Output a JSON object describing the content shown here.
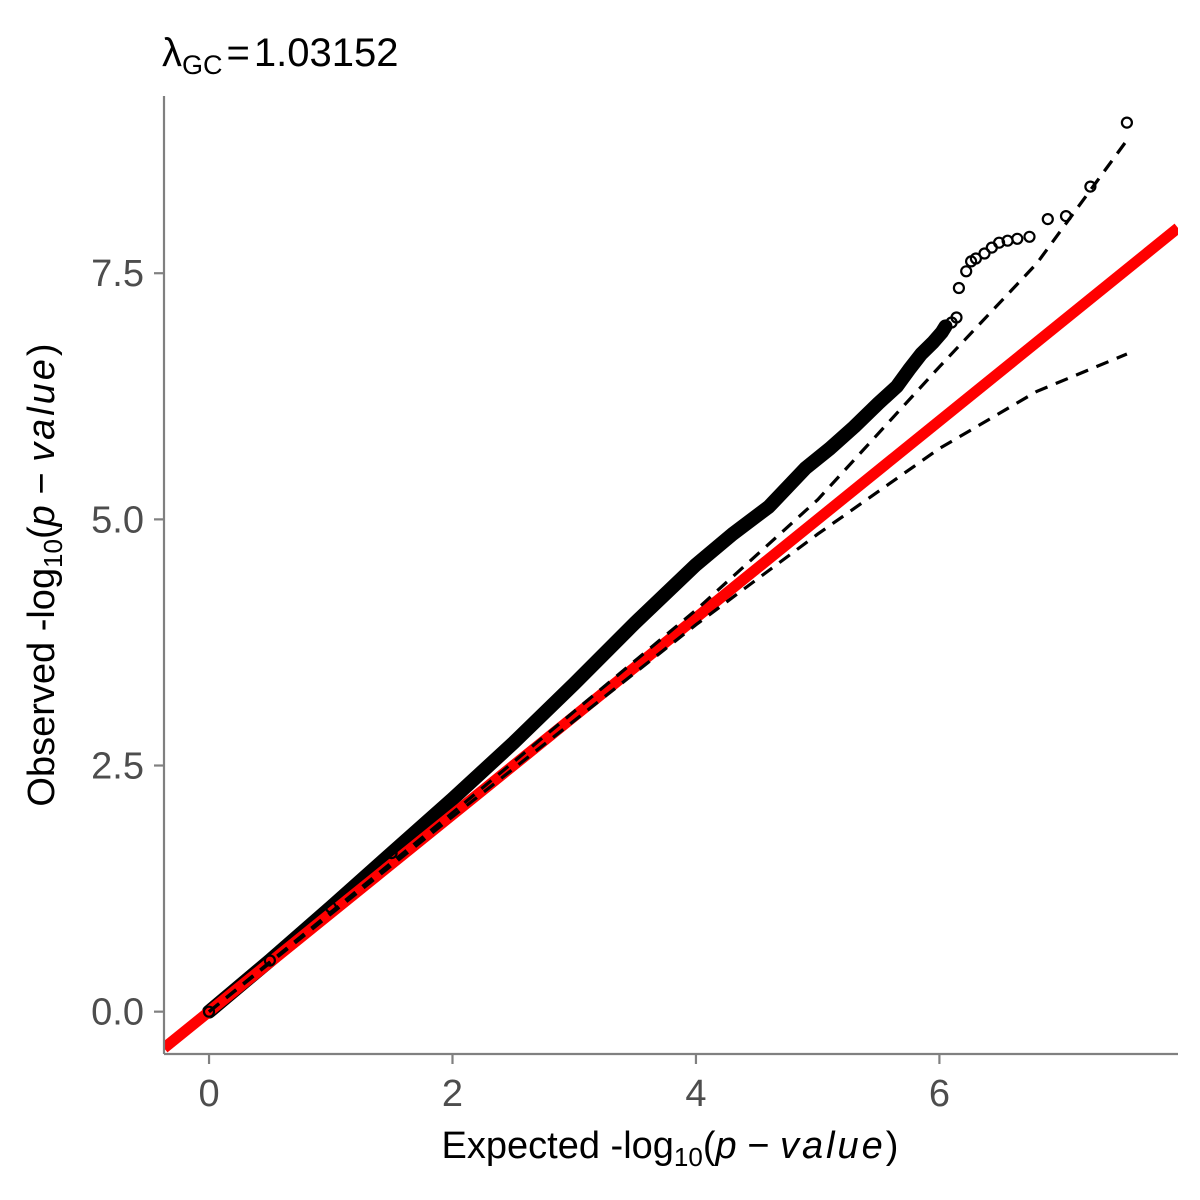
{
  "chart_data": {
    "type": "scatter",
    "title": {
      "symbol": "λ",
      "subscript": "GC",
      "equals": "=",
      "value": "1.03152"
    },
    "xlabel": {
      "prefix": "Expected -log",
      "subscript": "10",
      "open": "(",
      "p": "p",
      "minus": " − ",
      "italic": "value",
      "close": ")"
    },
    "ylabel": {
      "prefix": "Observed -log",
      "subscript": "10",
      "open": "(",
      "p": "p",
      "minus": " − ",
      "italic": "value",
      "close": ")"
    },
    "xlim": [
      -0.37,
      7.96
    ],
    "ylim": [
      -0.43,
      9.3
    ],
    "x_ticks": [
      0,
      2,
      4,
      6
    ],
    "x_tick_labels": [
      "0",
      "2",
      "4",
      "6"
    ],
    "y_ticks": [
      0,
      2.5,
      5,
      7.5
    ],
    "y_tick_labels": [
      "0.0",
      "2.5",
      "5.0",
      "7.5"
    ],
    "grid": false,
    "legend": "none",
    "colors": {
      "points": "#000000",
      "reference_line": "#ff0000",
      "confidence_band": "#000000",
      "axis": "#808080",
      "tick_label": "#4d4d4d"
    },
    "series": [
      {
        "kind": "observed_points",
        "points": [
          [
            0,
            0
          ],
          [
            0.5,
            0.52
          ],
          [
            1.0,
            1.06
          ],
          [
            1.5,
            1.61
          ],
          [
            2.0,
            2.16
          ],
          [
            2.5,
            2.73
          ],
          [
            3.0,
            3.33
          ],
          [
            3.5,
            3.95
          ],
          [
            4.0,
            4.54
          ],
          [
            4.3,
            4.85
          ],
          [
            4.6,
            5.13
          ],
          [
            4.9,
            5.52
          ],
          [
            5.1,
            5.72
          ],
          [
            5.3,
            5.94
          ],
          [
            5.5,
            6.18
          ],
          [
            5.65,
            6.35
          ],
          [
            5.75,
            6.52
          ],
          [
            5.85,
            6.68
          ],
          [
            5.95,
            6.8
          ],
          [
            6.02,
            6.9
          ],
          [
            6.05,
            6.96
          ],
          [
            6.1,
            7.0
          ],
          [
            6.14,
            7.05
          ],
          [
            6.16,
            7.35
          ],
          [
            6.22,
            7.52
          ],
          [
            6.26,
            7.62
          ],
          [
            6.3,
            7.65
          ],
          [
            6.37,
            7.7
          ],
          [
            6.43,
            7.76
          ],
          [
            6.49,
            7.81
          ],
          [
            6.56,
            7.83
          ],
          [
            6.64,
            7.85
          ],
          [
            6.74,
            7.87
          ],
          [
            6.89,
            8.05
          ],
          [
            7.04,
            8.08
          ],
          [
            7.24,
            8.38
          ],
          [
            7.54,
            9.03
          ]
        ]
      },
      {
        "kind": "expected_line",
        "from": [
          -0.37,
          -0.37
        ],
        "to": [
          7.96,
          7.96
        ]
      },
      {
        "kind": "upper_confidence",
        "points": [
          [
            0,
            0
          ],
          [
            2,
            2.02
          ],
          [
            4,
            4.08
          ],
          [
            5,
            5.2
          ],
          [
            6,
            6.55
          ],
          [
            6.8,
            7.6
          ],
          [
            7.54,
            8.85
          ]
        ]
      },
      {
        "kind": "lower_confidence",
        "points": [
          [
            0,
            0
          ],
          [
            2,
            1.98
          ],
          [
            4,
            3.93
          ],
          [
            5,
            4.85
          ],
          [
            6,
            5.72
          ],
          [
            6.8,
            6.3
          ],
          [
            7.54,
            6.68
          ]
        ]
      }
    ]
  }
}
